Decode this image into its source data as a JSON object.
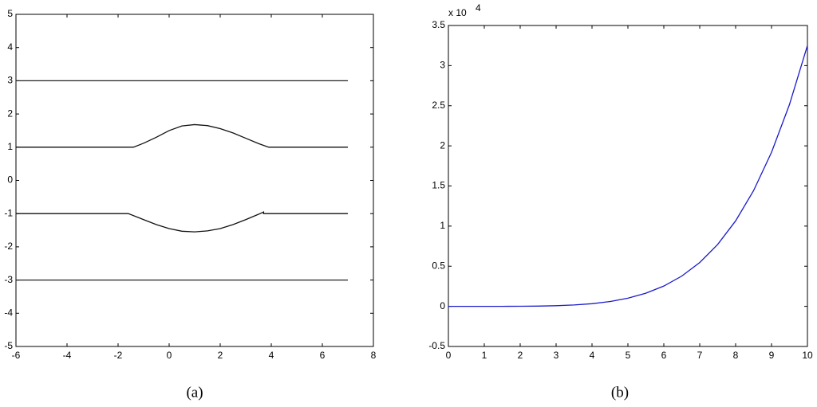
{
  "chart_data": [
    {
      "type": "line",
      "caption": "(a)",
      "xlim": [
        -6,
        8
      ],
      "xticks": [
        -6,
        -4,
        -2,
        0,
        2,
        4,
        6,
        8
      ],
      "ylim": [
        -5,
        5
      ],
      "yticks": [
        -5,
        -4,
        -3,
        -2,
        -1,
        0,
        1,
        2,
        3,
        4,
        5
      ],
      "series": [
        {
          "color": "#222222",
          "x": [
            -6,
            7
          ],
          "values": [
            3,
            3
          ]
        },
        {
          "color": "#111111",
          "x": [
            -6,
            -1.4,
            -1,
            -0.5,
            0,
            0.5,
            1,
            1.5,
            2,
            2.5,
            3,
            3.5,
            3.9,
            7
          ],
          "values": [
            1,
            1,
            1.12,
            1.3,
            1.5,
            1.64,
            1.68,
            1.65,
            1.56,
            1.43,
            1.27,
            1.11,
            1,
            1
          ]
        },
        {
          "color": "#111111",
          "x": [
            -6,
            -1.6,
            -1,
            -0.5,
            0,
            0.5,
            1,
            1.5,
            2,
            2.5,
            3,
            3.5,
            3.7,
            3.7,
            7
          ],
          "values": [
            -1,
            -1,
            -1.18,
            -1.33,
            -1.45,
            -1.53,
            -1.55,
            -1.52,
            -1.45,
            -1.33,
            -1.18,
            -1.02,
            -0.95,
            -1,
            -1
          ]
        },
        {
          "color": "#222222",
          "x": [
            -6,
            7
          ],
          "values": [
            -3,
            -3
          ]
        }
      ]
    },
    {
      "type": "line",
      "caption": "(b)",
      "y_multiplier": "x 10",
      "y_multiplier_exponent": "4",
      "xlim": [
        0,
        10
      ],
      "xticks": [
        0,
        1,
        2,
        3,
        4,
        5,
        6,
        7,
        8,
        9,
        10
      ],
      "ylim": [
        -0.5,
        3.5
      ],
      "yticks": [
        -0.5,
        0,
        0.5,
        1,
        1.5,
        2,
        2.5,
        3,
        3.5
      ],
      "series": [
        {
          "color": "#1a1acc",
          "x": [
            0,
            0.5,
            1,
            1.5,
            2,
            2.5,
            3,
            3.5,
            4,
            4.5,
            5,
            5.5,
            6,
            6.5,
            7,
            7.5,
            8,
            8.5,
            9,
            9.5,
            10
          ],
          "values": [
            0,
            0,
            0,
            0.0002,
            0.001,
            0.003,
            0.008,
            0.017,
            0.033,
            0.06,
            0.102,
            0.164,
            0.253,
            0.377,
            0.546,
            0.771,
            1.065,
            1.442,
            1.919,
            2.515,
            3.25
          ]
        }
      ]
    }
  ]
}
